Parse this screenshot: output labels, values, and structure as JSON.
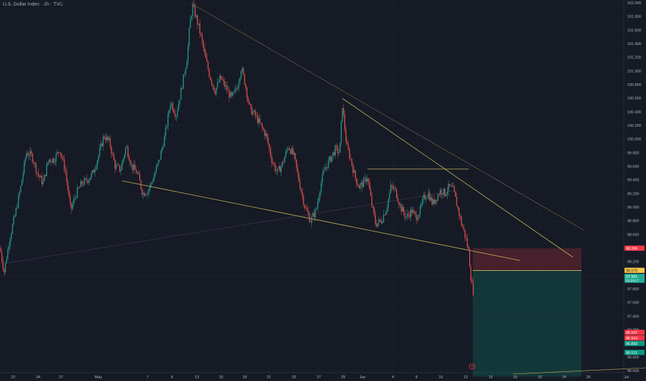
{
  "header": {
    "title": "U.S. Dollar Index · 2h · TVC"
  },
  "chart_data": {
    "type": "candlestick",
    "instrument": "U.S. Dollar Index",
    "timeframe": "2h",
    "source": "TVC",
    "x_tick_labels": [
      "22",
      "24",
      "27",
      "May",
      "7",
      "9",
      "13",
      "15",
      "18",
      "21",
      "23",
      "27",
      "29",
      "Jun",
      "4",
      "6",
      "10",
      "12",
      "15",
      "18",
      "20",
      "24",
      "26",
      "Jul"
    ],
    "y_ticks": [
      "102.000",
      "101.800",
      "101.600",
      "101.400",
      "101.200",
      "101.000",
      "100.800",
      "100.600",
      "100.400",
      "100.200",
      "100.000",
      "99.800",
      "99.600",
      "99.400",
      "99.200",
      "99.000",
      "98.800",
      "98.600",
      "98.400",
      "98.200",
      "98.000",
      "97.800",
      "97.600",
      "97.400",
      "97.200",
      "97.000",
      "96.800",
      "96.600"
    ],
    "ylim": [
      96.5,
      102.05
    ],
    "price_path": [
      [
        0,
        98.4
      ],
      [
        6,
        98.05
      ],
      [
        14,
        98.55
      ],
      [
        22,
        98.9
      ],
      [
        30,
        99.3
      ],
      [
        38,
        99.8
      ],
      [
        46,
        99.75
      ],
      [
        54,
        99.5
      ],
      [
        62,
        99.35
      ],
      [
        70,
        99.7
      ],
      [
        78,
        99.7
      ],
      [
        86,
        99.85
      ],
      [
        94,
        99.55
      ],
      [
        102,
        98.95
      ],
      [
        110,
        99.2
      ],
      [
        118,
        99.35
      ],
      [
        126,
        99.4
      ],
      [
        134,
        99.5
      ],
      [
        142,
        99.75
      ],
      [
        150,
        100.05
      ],
      [
        158,
        99.95
      ],
      [
        166,
        99.6
      ],
      [
        174,
        99.55
      ],
      [
        182,
        99.9
      ],
      [
        190,
        99.6
      ],
      [
        198,
        99.5
      ],
      [
        206,
        99.2
      ],
      [
        214,
        99.25
      ],
      [
        222,
        99.45
      ],
      [
        230,
        99.7
      ],
      [
        238,
        100.05
      ],
      [
        246,
        100.55
      ],
      [
        254,
        100.35
      ],
      [
        262,
        100.75
      ],
      [
        270,
        101.2
      ],
      [
        274,
        101.7
      ],
      [
        278,
        101.95
      ],
      [
        284,
        101.75
      ],
      [
        290,
        101.5
      ],
      [
        296,
        101.2
      ],
      [
        302,
        100.95
      ],
      [
        310,
        100.7
      ],
      [
        318,
        100.9
      ],
      [
        326,
        100.75
      ],
      [
        334,
        100.6
      ],
      [
        342,
        100.75
      ],
      [
        348,
        101.05
      ],
      [
        354,
        100.8
      ],
      [
        360,
        100.45
      ],
      [
        368,
        100.35
      ],
      [
        376,
        100.2
      ],
      [
        384,
        100.05
      ],
      [
        392,
        99.7
      ],
      [
        400,
        99.5
      ],
      [
        408,
        99.65
      ],
      [
        416,
        99.9
      ],
      [
        424,
        99.75
      ],
      [
        432,
        99.35
      ],
      [
        440,
        99.0
      ],
      [
        448,
        98.8
      ],
      [
        456,
        98.95
      ],
      [
        462,
        99.3
      ],
      [
        468,
        99.55
      ],
      [
        476,
        99.7
      ],
      [
        484,
        99.85
      ],
      [
        490,
        99.8
      ],
      [
        494,
        100.5
      ],
      [
        500,
        99.9
      ],
      [
        506,
        99.7
      ],
      [
        512,
        99.45
      ],
      [
        518,
        99.3
      ],
      [
        524,
        99.35
      ],
      [
        530,
        99.45
      ],
      [
        536,
        99.05
      ],
      [
        542,
        98.75
      ],
      [
        550,
        98.8
      ],
      [
        558,
        99.0
      ],
      [
        564,
        99.3
      ],
      [
        570,
        99.25
      ],
      [
        578,
        99.0
      ],
      [
        586,
        98.85
      ],
      [
        594,
        98.95
      ],
      [
        600,
        98.85
      ],
      [
        606,
        98.95
      ],
      [
        612,
        99.15
      ],
      [
        618,
        99.2
      ],
      [
        624,
        99.05
      ],
      [
        630,
        99.15
      ],
      [
        636,
        99.25
      ],
      [
        642,
        99.2
      ],
      [
        648,
        99.3
      ],
      [
        654,
        99.25
      ],
      [
        660,
        99.0
      ],
      [
        666,
        98.75
      ],
      [
        672,
        98.55
      ],
      [
        676,
        98.35
      ],
      [
        680,
        97.9
      ],
      [
        684,
        97.7
      ]
    ],
    "drawings": {
      "upper_trendline_label": "",
      "resistance_level_label": "",
      "entry_level": 98.07,
      "entry_label": "98.070"
    },
    "position": {
      "entry": 98.07,
      "stop": 98.395,
      "target": 96.511
    },
    "price_labels": [
      {
        "value": "98.395",
        "color": "#f23645"
      },
      {
        "value": "98.070",
        "color": "#f7c548"
      },
      {
        "value": "97.981",
        "sub": "01:28:17",
        "color": "#22ab94"
      },
      {
        "value": "96.937",
        "color": "#f23645"
      },
      {
        "value": "96.910",
        "color": "#f23645"
      },
      {
        "value": "96.883",
        "color": "#089981"
      },
      {
        "value": "96.511",
        "color": "#089981"
      }
    ]
  },
  "colors": {
    "background": "#161a25",
    "up": "#26a69a",
    "down": "#ef5350",
    "grid": "#1f2330",
    "axis_text": "#b2b5be",
    "trendline": "#c9b458",
    "stop_zone": "#f23645",
    "target_zone": "#089981"
  },
  "icons": {
    "bottom_marker": "lightning-icon"
  }
}
